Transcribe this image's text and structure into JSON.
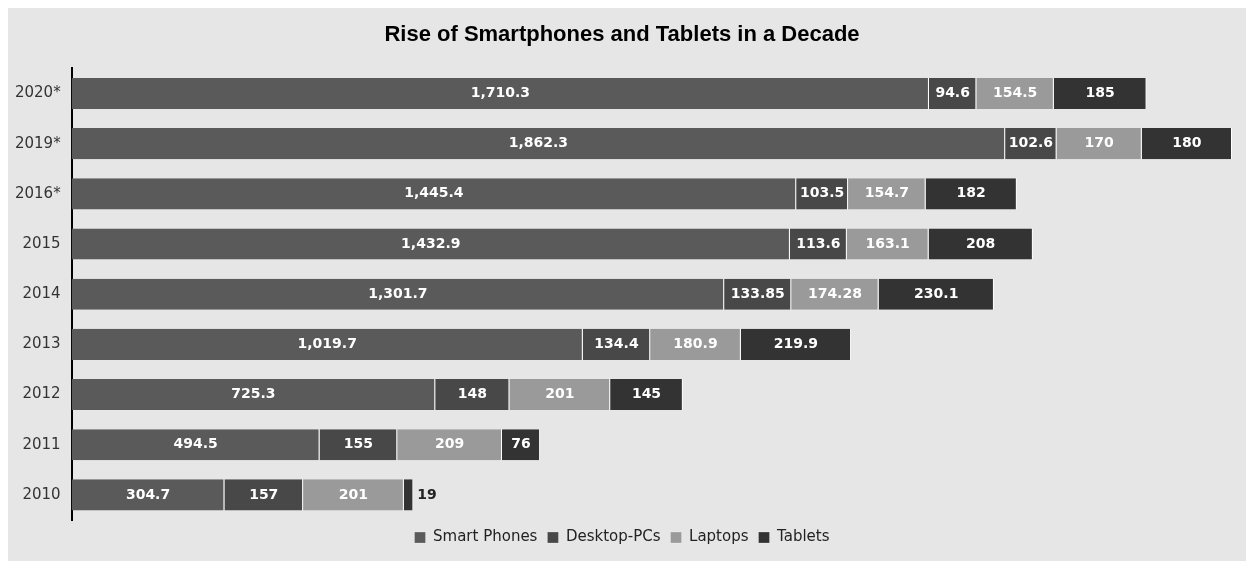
{
  "chart_data": {
    "type": "bar",
    "orientation": "horizontal",
    "stacked": true,
    "title": "Rise of Smartphones and Tablets in a Decade",
    "legend": "bottom",
    "categories": [
      "2020*",
      "2019*",
      "2016*",
      "2015",
      "2014",
      "2013",
      "2012",
      "2011",
      "2010"
    ],
    "series": [
      {
        "name": "Smart Phones",
        "color": "#5a5a5a",
        "values": [
          1710.3,
          1862.3,
          1445.4,
          1432.9,
          1301.7,
          1019.7,
          725.3,
          494.5,
          304.7
        ],
        "value_labels": [
          "1,710.3",
          "1,862.3",
          "1,445.4",
          "1,432.9",
          "1,301.7",
          "1,019.7",
          "725.3",
          "494.5",
          "304.7"
        ]
      },
      {
        "name": "Desktop-PCs",
        "color": "#484848",
        "values": [
          94.6,
          102.6,
          103.5,
          113.6,
          133.85,
          134.4,
          148,
          155,
          157
        ],
        "value_labels": [
          "94.6",
          "102.6",
          "103.5",
          "113.6",
          "133.85",
          "134.4",
          "148",
          "155",
          "157"
        ]
      },
      {
        "name": "Laptops",
        "color": "#9a9a9a",
        "values": [
          154.5,
          170,
          154.7,
          163.1,
          174.28,
          180.9,
          201,
          209,
          201
        ],
        "value_labels": [
          "154.5",
          "170",
          "154.7",
          "163.1",
          "174.28",
          "180.9",
          "201",
          "209",
          "201"
        ]
      },
      {
        "name": "Tablets",
        "color": "#333333",
        "values": [
          185,
          180,
          182,
          208,
          230.1,
          219.9,
          145,
          76,
          19
        ],
        "value_labels": [
          "185",
          "180",
          "182",
          "208",
          "230.1",
          "219.9",
          "145",
          "76",
          "19"
        ]
      }
    ]
  }
}
